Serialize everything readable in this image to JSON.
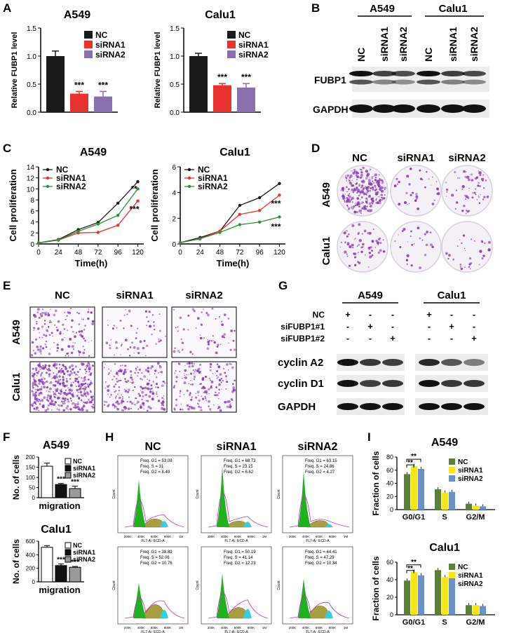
{
  "panel_labels": [
    "A",
    "B",
    "C",
    "D",
    "E",
    "F",
    "G",
    "H",
    "I"
  ],
  "colors": {
    "nc": "#1a1a1a",
    "sirna1": "#e8322d",
    "sirna2": "#8a6fae",
    "green_series": "#2f8f3a",
    "i_nc": "#5b7f3c",
    "i_s1": "#f5e617",
    "i_s2": "#6c8fcc",
    "stain_purple": "#8b3fb8",
    "flow_green": "#20b020",
    "flow_olive": "#a8a040",
    "flow_cyan": "#30d0e0"
  },
  "panelA": {
    "ylabel": "Relative FUBP1 level",
    "legend": [
      "NC",
      "siRNA1",
      "siRNA2"
    ],
    "charts": [
      {
        "title": "A549",
        "values": [
          1.0,
          0.33,
          0.28
        ],
        "err": [
          0.09,
          0.04,
          0.09
        ],
        "sig": [
          "",
          "***",
          "***"
        ]
      },
      {
        "title": "Calu1",
        "values": [
          1.0,
          0.48,
          0.44
        ],
        "err": [
          0.05,
          0.03,
          0.07
        ],
        "sig": [
          "",
          "***",
          "***"
        ]
      }
    ],
    "yticks": [
      "0.0",
      "0.5",
      "1.0",
      "1.5"
    ]
  },
  "panelB": {
    "groups": [
      "A549",
      "Calu1"
    ],
    "lanes": [
      "NC",
      "siRNA1",
      "siRNA2",
      "NC",
      "siRNA1",
      "siRNA2"
    ],
    "rows": [
      "FUBP1",
      "GAPDH"
    ]
  },
  "panelC": {
    "xlabel": "Time(h)",
    "ylabel": "Cell proliferation",
    "legend": [
      "NC",
      "siRNA1",
      "siRNA2"
    ],
    "x": [
      0,
      24,
      48,
      72,
      96,
      120
    ],
    "charts": [
      {
        "title": "A549",
        "yticks": [
          "0",
          "2",
          "4",
          "6",
          "8",
          "10",
          "12",
          "14"
        ],
        "ymax": 14,
        "series": [
          [
            0.2,
            0.8,
            2.6,
            3.9,
            7.4,
            11.3
          ],
          [
            0.2,
            0.7,
            2.0,
            2.1,
            3.4,
            7.8
          ],
          [
            0.2,
            0.7,
            2.3,
            3.6,
            5.2,
            10.0
          ]
        ],
        "sig": [
          "**",
          "***"
        ]
      },
      {
        "title": "Calu1",
        "yticks": [
          "0",
          "2",
          "4",
          "6"
        ],
        "ymax": 6,
        "series": [
          [
            0.1,
            0.5,
            1.0,
            3.0,
            3.6,
            4.7
          ],
          [
            0.1,
            0.4,
            1.0,
            2.3,
            2.6,
            3.8
          ],
          [
            0.1,
            0.4,
            0.9,
            1.5,
            1.7,
            2.1
          ]
        ],
        "sig": [
          "***",
          "***"
        ]
      }
    ],
    "xticks": [
      "0",
      "24",
      "48",
      "72",
      "96",
      "120"
    ]
  },
  "panelD": {
    "cols": [
      "NC",
      "siRNA1",
      "siRNA2"
    ],
    "rows": [
      "A549",
      "Calu1"
    ]
  },
  "panelE": {
    "cols": [
      "NC",
      "siRNA1",
      "siRNA2"
    ],
    "rows": [
      "A549",
      "Calu1"
    ]
  },
  "panelF": {
    "ylabel": "No. of cells",
    "xlabel": "migration",
    "legend": [
      "NC",
      "siRNA1",
      "siRNA2"
    ],
    "charts": [
      {
        "title": "A549",
        "values": [
          155,
          65,
          45
        ],
        "err": [
          15,
          5,
          12
        ],
        "sig": [
          "",
          "***",
          "***"
        ],
        "yticks": [
          "0",
          "50",
          "100",
          "150",
          "200"
        ],
        "ymax": 200
      },
      {
        "title": "Calu1",
        "values": [
          510,
          240,
          215
        ],
        "err": [
          25,
          25,
          12
        ],
        "sig": [
          "",
          "***",
          "***"
        ],
        "yticks": [
          "0",
          "200",
          "400",
          "600"
        ],
        "ymax": 600
      }
    ]
  },
  "panelG": {
    "groups": [
      "A549",
      "Calu1"
    ],
    "conditions": [
      {
        "label": "NC",
        "signs": [
          "+",
          "-",
          "-",
          "+",
          "-",
          "-"
        ]
      },
      {
        "label": "siFUBP1#1",
        "signs": [
          "-",
          "+",
          "-",
          "-",
          "+",
          "-"
        ]
      },
      {
        "label": "siFUBP1#2",
        "signs": [
          "-",
          "-",
          "+",
          "-",
          "-",
          "+"
        ]
      }
    ],
    "rows": [
      "cyclin A2",
      "cyclin D1",
      "GAPDH"
    ]
  },
  "panelH": {
    "cols": [
      "NC",
      "siRNA1",
      "siRNA2"
    ],
    "stats": [
      [
        "Freq. G1 = 53.08",
        "Freq. S = 31",
        "Freq. G2 = 8.49"
      ],
      [
        "Freq. G1 = 68.73",
        "Freq. S = 23.15",
        "Freq. G2 = 6.62"
      ],
      [
        "Freq. G1 = 63.15",
        "Freq. S = 24.86",
        "Freq. G2 = 4.27"
      ],
      [
        "Freq. G1 = 38.89",
        "Freq. S = 52.06",
        "Freq. G2 = 10.76"
      ],
      [
        "Freq. G1 = 50.19",
        "Freq. S = 41.14",
        "Freq. G2 = 12.23"
      ],
      [
        "Freq. G1 = 44.41",
        "Freq. S = 47.29",
        "Freq. G2 = 10.34"
      ]
    ],
    "xlabel_top": "FL7-A:: ECD-A",
    "xlabel_bottom": "FL7-A:: ECD-A",
    "ylabel": "Count",
    "xticks": [
      "200K",
      "400K",
      "600K",
      "800K",
      "1M"
    ]
  },
  "panelI": {
    "ylabel": "Fraction of cells",
    "legend": [
      "NC",
      "siRNA1",
      "siRNA2"
    ],
    "categories": [
      "G0/G1",
      "S",
      "G2/M"
    ],
    "charts": [
      {
        "title": "A549",
        "yticks": [
          "0",
          "20",
          "40",
          "60",
          "80"
        ],
        "ymax": 80,
        "values": [
          [
            54,
            31,
            9
          ],
          [
            66,
            26,
            6
          ],
          [
            62,
            27,
            5
          ]
        ],
        "sig": [
          "**",
          "**"
        ]
      },
      {
        "title": "Calu1",
        "yticks": [
          "0",
          "20",
          "40",
          "60"
        ],
        "ymax": 60,
        "values": [
          [
            39,
            51,
            11
          ],
          [
            49,
            43,
            11
          ],
          [
            45,
            46,
            10
          ]
        ],
        "sig": [
          "**",
          "**"
        ]
      }
    ]
  },
  "chart_data": [
    {
      "type": "bar",
      "title": "A549",
      "ylabel": "Relative FUBP1 level",
      "categories": [
        "NC",
        "siRNA1",
        "siRNA2"
      ],
      "values": [
        1.0,
        0.33,
        0.28
      ],
      "ylim": [
        0,
        1.5
      ]
    },
    {
      "type": "bar",
      "title": "Calu1",
      "ylabel": "Relative FUBP1 level",
      "categories": [
        "NC",
        "siRNA1",
        "siRNA2"
      ],
      "values": [
        1.0,
        0.48,
        0.44
      ],
      "ylim": [
        0,
        1.5
      ]
    },
    {
      "type": "line",
      "title": "A549",
      "xlabel": "Time(h)",
      "ylabel": "Cell proliferation",
      "x": [
        0,
        24,
        48,
        72,
        96,
        120
      ],
      "series": [
        {
          "name": "NC",
          "values": [
            0.2,
            0.8,
            2.6,
            3.9,
            7.4,
            11.3
          ]
        },
        {
          "name": "siRNA1",
          "values": [
            0.2,
            0.7,
            2.0,
            2.1,
            3.4,
            7.8
          ]
        },
        {
          "name": "siRNA2",
          "values": [
            0.2,
            0.7,
            2.3,
            3.6,
            5.2,
            10.0
          ]
        }
      ],
      "ylim": [
        0,
        14
      ]
    },
    {
      "type": "line",
      "title": "Calu1",
      "xlabel": "Time(h)",
      "ylabel": "Cell proliferation",
      "x": [
        0,
        24,
        48,
        72,
        96,
        120
      ],
      "series": [
        {
          "name": "NC",
          "values": [
            0.1,
            0.5,
            1.0,
            3.0,
            3.6,
            4.7
          ]
        },
        {
          "name": "siRNA1",
          "values": [
            0.1,
            0.4,
            1.0,
            2.3,
            2.6,
            3.8
          ]
        },
        {
          "name": "siRNA2",
          "values": [
            0.1,
            0.4,
            0.9,
            1.5,
            1.7,
            2.1
          ]
        }
      ],
      "ylim": [
        0,
        6
      ]
    },
    {
      "type": "bar",
      "title": "A549",
      "xlabel": "migration",
      "ylabel": "No. of cells",
      "categories": [
        "NC",
        "siRNA1",
        "siRNA2"
      ],
      "values": [
        155,
        65,
        45
      ],
      "ylim": [
        0,
        200
      ]
    },
    {
      "type": "bar",
      "title": "Calu1",
      "xlabel": "migration",
      "ylabel": "No. of cells",
      "categories": [
        "NC",
        "siRNA1",
        "siRNA2"
      ],
      "values": [
        510,
        240,
        215
      ],
      "ylim": [
        0,
        600
      ]
    },
    {
      "type": "bar",
      "title": "A549",
      "ylabel": "Fraction of cells",
      "categories": [
        "G0/G1",
        "S",
        "G2/M"
      ],
      "series": [
        {
          "name": "NC",
          "values": [
            54,
            31,
            9
          ]
        },
        {
          "name": "siRNA1",
          "values": [
            66,
            26,
            6
          ]
        },
        {
          "name": "siRNA2",
          "values": [
            62,
            27,
            5
          ]
        }
      ],
      "ylim": [
        0,
        80
      ]
    },
    {
      "type": "bar",
      "title": "Calu1",
      "ylabel": "Fraction of cells",
      "categories": [
        "G0/G1",
        "S",
        "G2/M"
      ],
      "series": [
        {
          "name": "NC",
          "values": [
            39,
            51,
            11
          ]
        },
        {
          "name": "siRNA1",
          "values": [
            49,
            43,
            11
          ]
        },
        {
          "name": "siRNA2",
          "values": [
            45,
            46,
            10
          ]
        }
      ],
      "ylim": [
        0,
        60
      ]
    }
  ]
}
